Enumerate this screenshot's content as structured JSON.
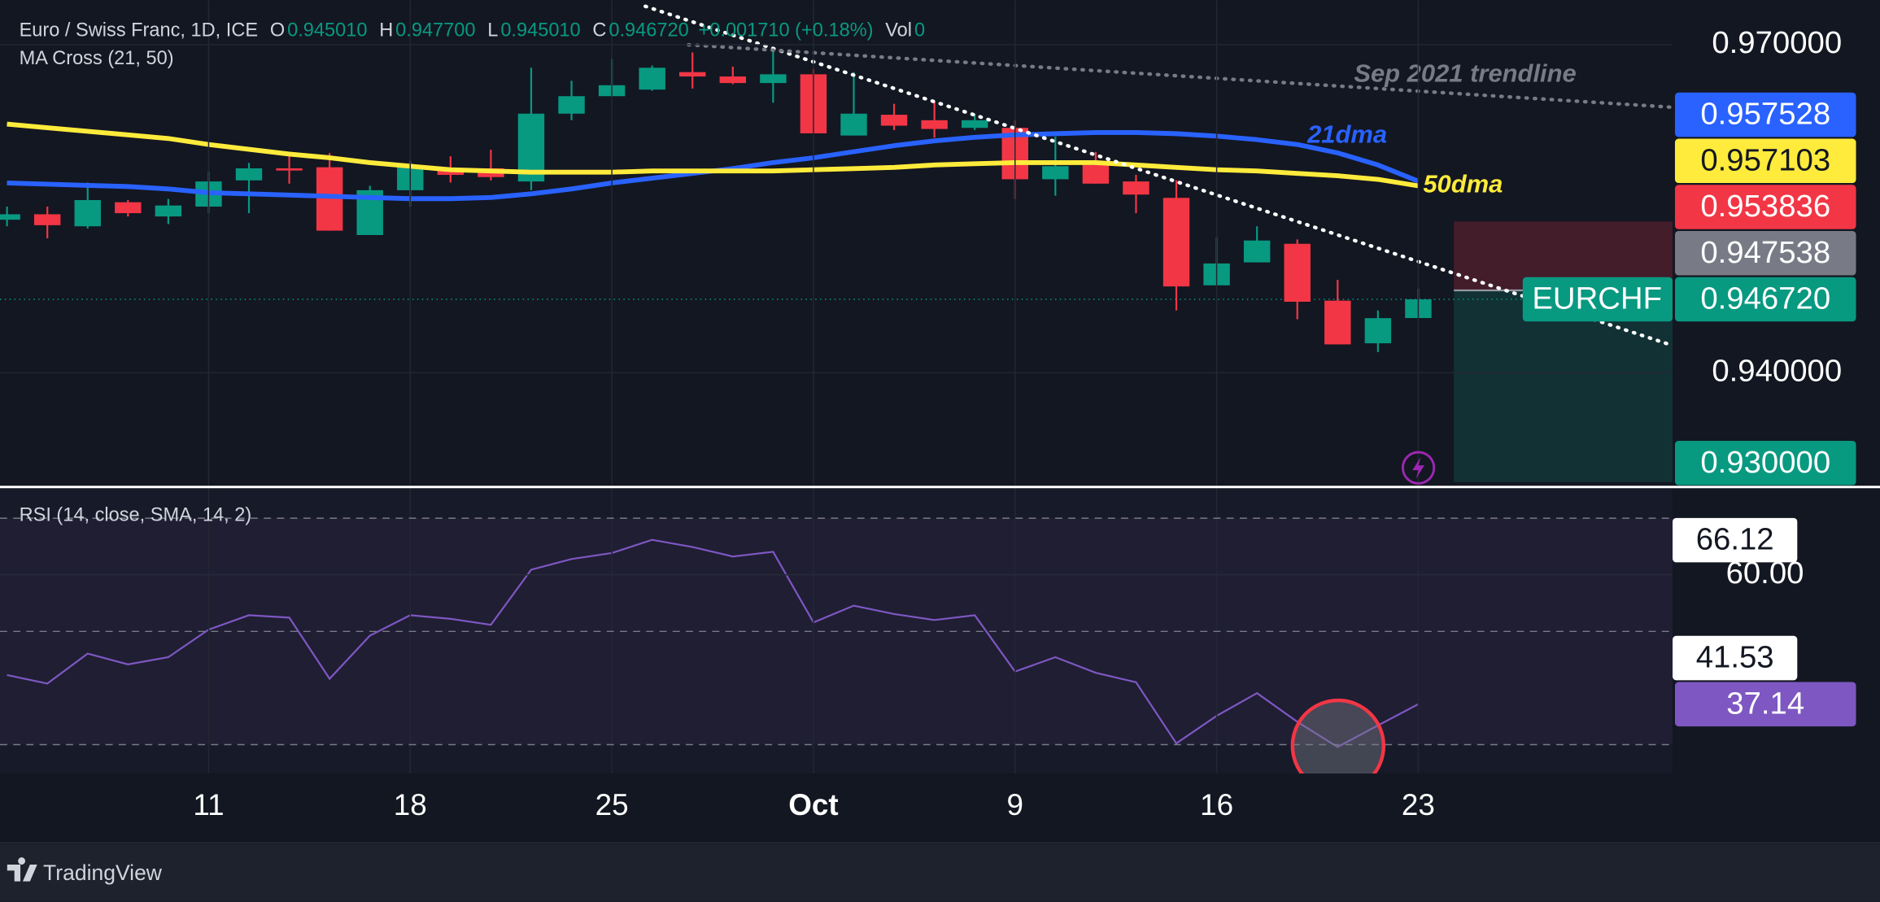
{
  "chart_data": [
    {
      "type": "candlestick",
      "title": "Euro / Swiss Franc, 1D, ICE",
      "legend_fields": [
        {
          "key": "O",
          "value": "0.945010"
        },
        {
          "key": "H",
          "value": "0.947700"
        },
        {
          "key": "L",
          "value": "0.945010"
        },
        {
          "key": "C",
          "value": "0.946720"
        },
        {
          "value": "+0.001710 (+0.18%)"
        },
        {
          "key": "Vol",
          "value": "0"
        }
      ],
      "indicator": "MA Cross (21, 50)",
      "categories": [
        null,
        null,
        null,
        null,
        null,
        "11",
        null,
        null,
        null,
        null,
        "18",
        null,
        null,
        null,
        null,
        "25",
        null,
        null,
        null,
        null,
        "Oct",
        null,
        null,
        null,
        null,
        "9",
        null,
        null,
        null,
        null,
        "16",
        null,
        null,
        null,
        null,
        "23"
      ],
      "open": [
        0.954,
        0.9545,
        0.9534,
        0.9556,
        0.9543,
        0.9552,
        0.9576,
        0.9587,
        0.9588,
        0.9526,
        0.9567,
        0.9587,
        0.9587,
        0.9575,
        0.9637,
        0.9653,
        0.9659,
        0.9675,
        0.9671,
        0.9665,
        0.9673,
        0.9617,
        0.9636,
        0.9631,
        0.9624,
        0.9624,
        0.9577,
        0.959,
        0.9575,
        0.956,
        0.948,
        0.9501,
        0.9518,
        0.9466,
        0.9427,
        0.94501
      ],
      "high": [
        0.9552,
        0.9552,
        0.9574,
        0.9558,
        0.9559,
        0.9584,
        0.9592,
        0.9598,
        0.9601,
        0.9571,
        0.9594,
        0.9598,
        0.9604,
        0.9679,
        0.9667,
        0.9687,
        0.9681,
        0.9693,
        0.968,
        0.9697,
        0.9678,
        0.9675,
        0.9646,
        0.9648,
        0.9637,
        0.9631,
        0.9616,
        0.9602,
        0.9581,
        0.9576,
        0.9524,
        0.9534,
        0.9522,
        0.9485,
        0.9457,
        0.9477
      ],
      "low": [
        0.9534,
        0.9523,
        0.9532,
        0.9543,
        0.9536,
        0.9546,
        0.9546,
        0.9573,
        0.953,
        0.9526,
        0.9552,
        0.9574,
        0.9576,
        0.9567,
        0.9631,
        0.9653,
        0.9658,
        0.966,
        0.9664,
        0.9647,
        0.9619,
        0.9617,
        0.9622,
        0.9615,
        0.9622,
        0.9559,
        0.9562,
        0.9573,
        0.9546,
        0.9457,
        0.948,
        0.9501,
        0.9449,
        0.9426,
        0.9419,
        0.94501
      ],
      "close": [
        0.9545,
        0.9535,
        0.9558,
        0.9546,
        0.9553,
        0.9575,
        0.9587,
        0.9585,
        0.953,
        0.9567,
        0.9589,
        0.9581,
        0.9579,
        0.9637,
        0.9653,
        0.9663,
        0.9679,
        0.9671,
        0.9665,
        0.9673,
        0.9619,
        0.9637,
        0.9626,
        0.9623,
        0.9631,
        0.9577,
        0.9589,
        0.9573,
        0.9563,
        0.9479,
        0.95,
        0.9521,
        0.9465,
        0.9426,
        0.945,
        0.94672
      ],
      "up_color": "#089981",
      "down_color": "#f23645",
      "series": [
        {
          "name": "21dma",
          "color": "#2962ff",
          "values": [
            0.95736,
            0.95725,
            0.95714,
            0.95703,
            0.95681,
            0.95648,
            0.95637,
            0.95626,
            0.95615,
            0.95604,
            0.95593,
            0.95593,
            0.95604,
            0.95637,
            0.95681,
            0.95736,
            0.9578,
            0.95824,
            0.95868,
            0.95923,
            0.95967,
            0.96022,
            0.96077,
            0.96121,
            0.96154,
            0.96176,
            0.96187,
            0.96198,
            0.96198,
            0.96187,
            0.96165,
            0.96132,
            0.96088,
            0.96011,
            0.95901,
            0.957528
          ]
        },
        {
          "name": "50dma",
          "color": "#ffeb3b",
          "values": [
            0.96275,
            0.96242,
            0.96209,
            0.96176,
            0.96143,
            0.96088,
            0.96044,
            0.96,
            0.95967,
            0.95923,
            0.9589,
            0.95857,
            0.95846,
            0.95835,
            0.95835,
            0.95835,
            0.95846,
            0.95846,
            0.95846,
            0.95846,
            0.95857,
            0.95868,
            0.95879,
            0.95901,
            0.95912,
            0.95923,
            0.95923,
            0.95923,
            0.95901,
            0.95879,
            0.95857,
            0.95846,
            0.95824,
            0.95802,
            0.95769,
            0.957103
          ]
        }
      ],
      "ylim": [
        0.92978,
        0.97407
      ],
      "yticks": [
        {
          "value": 0.97,
          "label": "0.970000"
        },
        {
          "value": 0.94,
          "label": "0.940000"
        }
      ],
      "grid": true,
      "price_labels": [
        {
          "value": 0.957528,
          "label": "0.957528",
          "color": "#2962ff",
          "text_color": "#ffffff"
        },
        {
          "value": 0.957103,
          "label": "0.957103",
          "color": "#ffeb3b",
          "text_color": "#131722"
        },
        {
          "value": 0.953836,
          "label": "0.953836",
          "color": "#f23645",
          "text_color": "#ffffff",
          "role": "stop"
        },
        {
          "value": 0.947538,
          "label": "0.947538",
          "color": "#787b86",
          "text_color": "#ffffff",
          "role": "entry"
        },
        {
          "value": 0.94672,
          "label": "0.946720",
          "color": "#089981",
          "text_color": "#ffffff",
          "name": "EURCHF",
          "dotted_line": true
        },
        {
          "value": 0.93,
          "label": "0.930000",
          "color": "#089981",
          "text_color": "#ffffff",
          "role": "target"
        }
      ],
      "trendlines": [
        {
          "start": [
            15.83,
            0.97352
          ],
          "end": [
            41.28,
            0.94253
          ],
          "color": "#ffffff"
        },
        {
          "label": "Sep 2021 trendline",
          "start": [
            16.9,
            0.97
          ],
          "end": [
            41.28,
            0.96429
          ],
          "color": "#787b86"
        }
      ]
    },
    {
      "type": "line",
      "title": "RSI (14, close, SMA, 14, 2)",
      "color": "#7e57c2",
      "values": [
        42.28,
        40.79,
        46.08,
        44.18,
        45.45,
        50.32,
        52.86,
        52.43,
        41.64,
        49.26,
        52.86,
        52.22,
        51.16,
        60.9,
        62.8,
        63.86,
        66.19,
        64.92,
        63.23,
        64.07,
        51.59,
        54.55,
        53.07,
        52.01,
        52.86,
        42.91,
        45.45,
        42.7,
        41.01,
        30.21,
        35.08,
        39.1,
        34.02,
        29.58,
        33.39,
        37.14
      ],
      "ylim": [
        24.9,
        75.1
      ],
      "yticks": [
        {
          "value": 60,
          "label": "60.00"
        }
      ],
      "bands": [
        70,
        50,
        30
      ],
      "price_labels": [
        {
          "value": 66.12,
          "label": "66.12",
          "color": "#ffffff",
          "text_color": "#131722"
        },
        {
          "value": 41.53,
          "label": "41.53",
          "color": "#ffffff",
          "text_color": "#131722"
        },
        {
          "value": 37.14,
          "label": "37.14",
          "color": "#7e57c2",
          "text_color": "#ffffff"
        }
      ]
    }
  ],
  "footer": {
    "brand": "TradingView"
  }
}
